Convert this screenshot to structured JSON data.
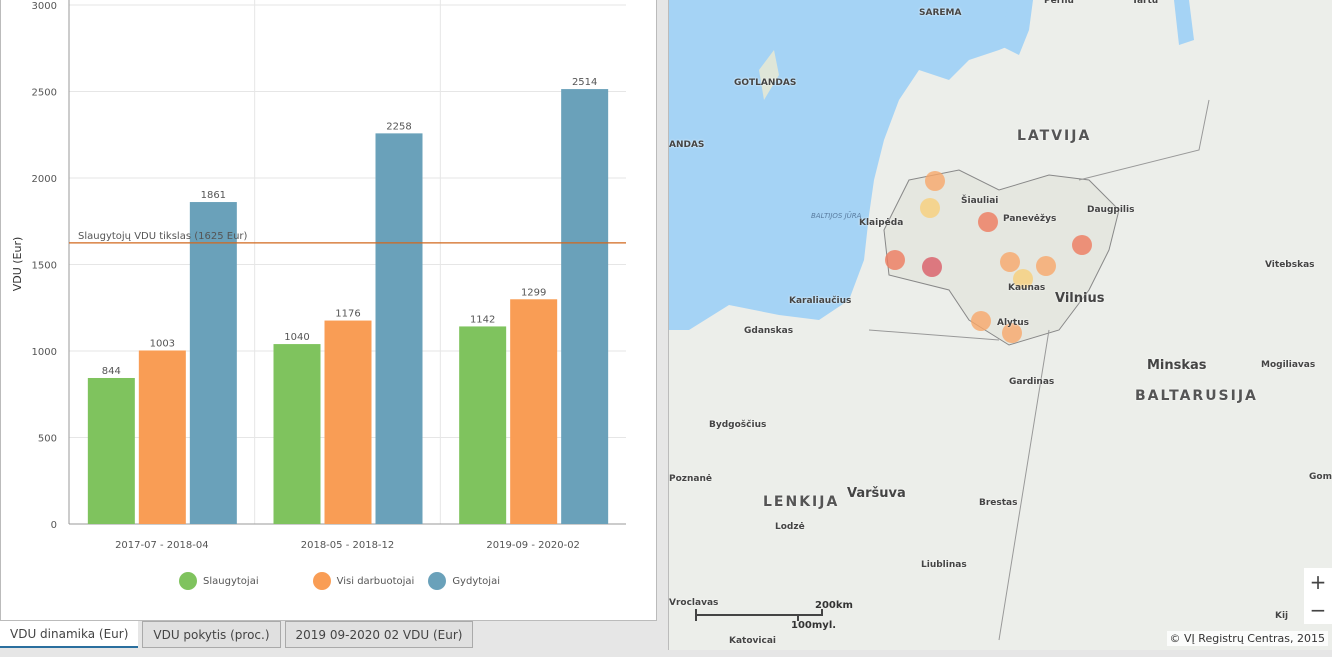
{
  "chart_data": {
    "type": "bar",
    "categories": [
      "2017-07 - 2018-04",
      "2018-05 - 2018-12",
      "2019-09 - 2020-02"
    ],
    "series": [
      {
        "name": "Slaugytojai",
        "values": [
          844,
          1040,
          1142
        ],
        "color": "#7fc35e"
      },
      {
        "name": "Visi darbuotojai",
        "values": [
          1003,
          1176,
          1299
        ],
        "color": "#f99d55"
      },
      {
        "name": "Gydytojai",
        "values": [
          1861,
          2258,
          2514
        ],
        "color": "#6aa1ba"
      }
    ],
    "ylabel": "VDU (Eur)",
    "xlabel": "",
    "ylim": [
      0,
      3000
    ],
    "yticks": [
      0,
      500,
      1000,
      1500,
      2000,
      2500,
      3000
    ],
    "reference_line": {
      "value": 1625,
      "label": "Slaugytojų VDU tikslas (1625 Eur)",
      "color": "#d2691e"
    },
    "grid": true,
    "legend": "bottom"
  },
  "tabs": [
    {
      "label": "VDU dinamika (Eur)",
      "active": true
    },
    {
      "label": "VDU pokytis (proc.)"
    },
    {
      "label": "2019 09-2020 02 VDU (Eur)"
    }
  ],
  "map": {
    "labels": [
      "SAREMA",
      "Pernu",
      "Tartu",
      "GOTLANDAS",
      "ANDAS",
      "LATVIJA",
      "Šiauliai",
      "Panevėžys",
      "Klaipėda",
      "BALTIJOS JŪRA",
      "Daugpilis",
      "Kaunas",
      "Vilnius",
      "Alytus",
      "Karaliaučius",
      "Gdanskas",
      "Minskas",
      "Mogiliavas",
      "BALTARUSIJA",
      "Vitebskas",
      "Gardinas",
      "Bydgoščius",
      "Poznanė",
      "LENKIJA",
      "Varšuva",
      "Brestas",
      "Lodzė",
      "Liublinas",
      "Vroclavas",
      "Katovicai",
      "Gom",
      "Kij"
    ],
    "scale_km": "200km",
    "scale_mi": "100myl.",
    "zoom_in": "+",
    "zoom_out": "−",
    "attribution": "© VĮ Registrų Centras, 2015"
  }
}
